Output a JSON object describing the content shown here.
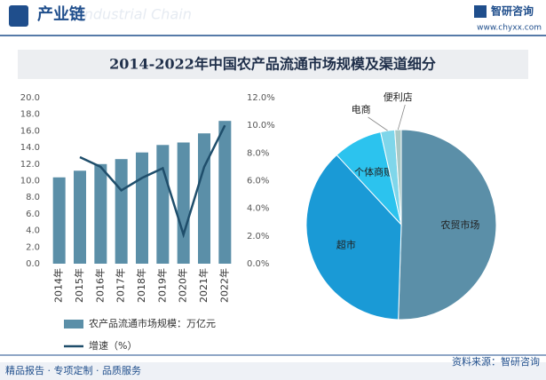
{
  "header": {
    "title": "产业链",
    "watermark": "Industrial Chain",
    "logo": "智研咨询",
    "url": "www.chyxx.com"
  },
  "banner_title": "2014-2022年中国农产品流通市场规模及渠道细分",
  "chart_data": [
    {
      "type": "bar_line",
      "categories": [
        "2014年",
        "2015年",
        "2016年",
        "2017年",
        "2018年",
        "2019年",
        "2020年",
        "2021年",
        "2022年"
      ],
      "series": [
        {
          "name": "农产品流通市场规模：万亿元",
          "color": "#5b8fa8",
          "values": [
            10.4,
            11.2,
            12.0,
            12.6,
            13.4,
            14.3,
            14.6,
            15.7,
            17.2
          ]
        },
        {
          "name": "增速（%）",
          "color": "#1f4e6b",
          "axis": "y2",
          "values": [
            null,
            7.7,
            7.0,
            5.3,
            6.2,
            6.9,
            2.1,
            7.0,
            10.0
          ]
        }
      ],
      "ylim": [
        0,
        20
      ],
      "yticks": [
        {
          "value": 0,
          "label": "0.0"
        },
        {
          "value": 2,
          "label": "2.0"
        },
        {
          "value": 4,
          "label": "4.0"
        },
        {
          "value": 6,
          "label": "6.0"
        },
        {
          "value": 8,
          "label": "8.0"
        },
        {
          "value": 10,
          "label": "10.0"
        },
        {
          "value": 12,
          "label": "12.0"
        },
        {
          "value": 14,
          "label": "14.0"
        },
        {
          "value": 16,
          "label": "16.0"
        },
        {
          "value": 18,
          "label": "18.0"
        },
        {
          "value": 20,
          "label": "20.0"
        }
      ],
      "y2lim": [
        0,
        12
      ],
      "y2ticks": [
        {
          "value": 0,
          "label": "0.0%"
        },
        {
          "value": 2,
          "label": "2.0%"
        },
        {
          "value": 4,
          "label": "4.0%"
        },
        {
          "value": 6,
          "label": "6.0%"
        },
        {
          "value": 8,
          "label": "8.0%"
        },
        {
          "value": 10,
          "label": "10.0%"
        },
        {
          "value": 12,
          "label": "12.0%"
        }
      ]
    },
    {
      "type": "pie",
      "categories": [
        "农贸市场",
        "超市",
        "个体商贩",
        "电商",
        "便利店"
      ],
      "values": [
        50.5,
        37.6,
        8.4,
        2.4,
        1.1
      ],
      "colors": [
        "#5b8fa8",
        "#1a9ad6",
        "#2cc3ee",
        "#7fd6ea",
        "#a9c9c6"
      ]
    }
  ],
  "footer": {
    "slogan": "精品报告 · 专项定制 · 品质服务",
    "source": "资料来源：智研咨询"
  }
}
